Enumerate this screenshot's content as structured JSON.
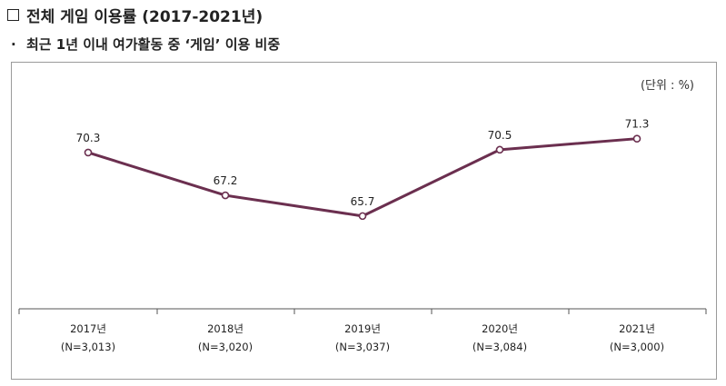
{
  "heading": {
    "text": "전체 게임 이용률 (2017-2021년)"
  },
  "subheading": {
    "bullet": "·",
    "text": "최근 1년 이내 여가활동 중 ‘게임’ 이용 비중"
  },
  "chart_data": {
    "type": "line",
    "title": "",
    "unit_note": "(단위 : %)",
    "categories": [
      "2017년",
      "2018년",
      "2019년",
      "2020년",
      "2021년"
    ],
    "category_notes": [
      "(N=3,013)",
      "(N=3,020)",
      "(N=3,037)",
      "(N=3,084)",
      "(N=3,000)"
    ],
    "series": [
      {
        "values": [
          70.3,
          67.2,
          65.7,
          70.5,
          71.3
        ],
        "color": "#6b2f4f"
      }
    ],
    "data_labels": [
      "70.3",
      "67.2",
      "65.7",
      "70.5",
      "71.3"
    ],
    "grid": false,
    "legend": "none"
  }
}
